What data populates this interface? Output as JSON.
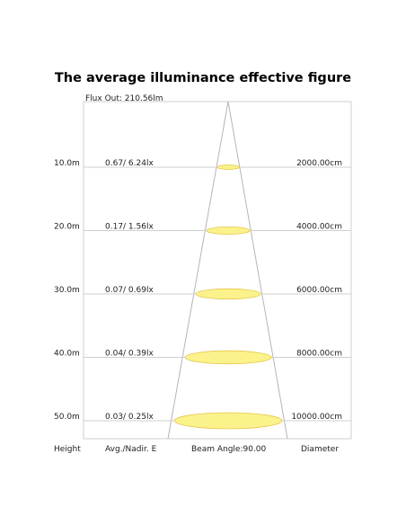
{
  "title": "The average illuminance effective figure",
  "flux": "Flux Out: 210.56lm",
  "rows": [
    {
      "height": "10.0m",
      "illuminance": "0.67/ 6.24lx",
      "diameter": "2000.00cm"
    },
    {
      "height": "20.0m",
      "illuminance": "0.17/ 1.56lx",
      "diameter": "4000.00cm"
    },
    {
      "height": "30.0m",
      "illuminance": "0.07/ 0.69lx",
      "diameter": "6000.00cm"
    },
    {
      "height": "40.0m",
      "illuminance": "0.04/ 0.39lx",
      "diameter": "8000.00cm"
    },
    {
      "height": "50.0m",
      "illuminance": "0.03/ 0.25lx",
      "diameter": "10000.00cm"
    }
  ],
  "footer": {
    "height": "Height",
    "illuminance": "Avg./Nadir. E",
    "beam": "Beam Angle:90.00",
    "diameter": "Diameter"
  }
}
